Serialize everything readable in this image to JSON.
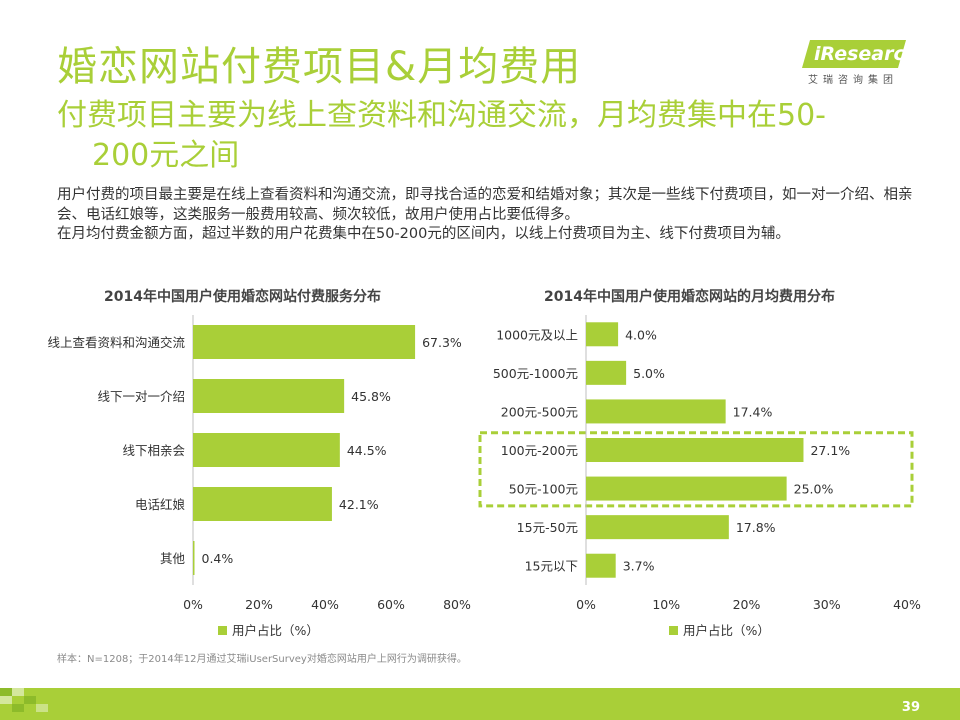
{
  "header": {
    "title": "婚恋网站付费项目&月均费用",
    "subtitle_line1": "付费项目主要为线上查资料和沟通交流，月均费集中在50-",
    "subtitle_line2": "200元之间"
  },
  "logo": {
    "brand": "iResearch",
    "cn": "艾瑞咨询集团"
  },
  "description": [
    "用户付费的项目最主要是在线上查看资料和沟通交流，即寻找合适的恋爱和结婚对象；其次是一些线下付费项目，如一对一介绍、相亲会、电话红娘等，这类服务一般费用较高、频次较低，故用户使用占比要低得多。",
    "在月均付费金额方面，超过半数的用户花费集中在50-200元的区间内，以线上付费项目为主、线下付费项目为辅。"
  ],
  "colors": {
    "accent": "#a9cf38",
    "text": "#333333",
    "grid": "#d9d9d9"
  },
  "chart_data": [
    {
      "type": "bar",
      "orientation": "horizontal",
      "title": "2014年中国用户使用婚恋网站付费服务分布",
      "categories": [
        "线上查看资料和沟通交流",
        "线下一对一介绍",
        "线下相亲会",
        "电话红娘",
        "其他"
      ],
      "series": [
        {
          "name": "用户占比（%）",
          "values": [
            67.3,
            45.8,
            44.5,
            42.1,
            0.4
          ]
        }
      ],
      "value_labels": [
        "67.3%",
        "45.8%",
        "44.5%",
        "42.1%",
        "0.4%"
      ],
      "xlim": [
        0,
        80
      ],
      "xticks": [
        "0%",
        "20%",
        "40%",
        "60%",
        "80%"
      ],
      "legend": "bottom"
    },
    {
      "type": "bar",
      "orientation": "horizontal",
      "title": "2014年中国用户使用婚恋网站的月均费用分布",
      "categories": [
        "1000元及以上",
        "500元-1000元",
        "200元-500元",
        "100元-200元",
        "50元-100元",
        "15元-50元",
        "15元以下"
      ],
      "series": [
        {
          "name": "用户占比（%）",
          "values": [
            4.0,
            5.0,
            17.4,
            27.1,
            25.0,
            17.8,
            3.7
          ]
        }
      ],
      "value_labels": [
        "4.0%",
        "5.0%",
        "17.4%",
        "27.1%",
        "25.0%",
        "17.8%",
        "3.7%"
      ],
      "xlim": [
        0,
        40
      ],
      "xticks": [
        "0%",
        "10%",
        "20%",
        "30%",
        "40%"
      ],
      "highlighted_categories": [
        "100元-200元",
        "50元-100元"
      ],
      "legend": "bottom"
    }
  ],
  "footer": {
    "source": "样本：N=1208；于2014年12月通过艾瑞iUserSurvey对婚恋网站用户上网行为调研获得。",
    "page_number": "39"
  }
}
